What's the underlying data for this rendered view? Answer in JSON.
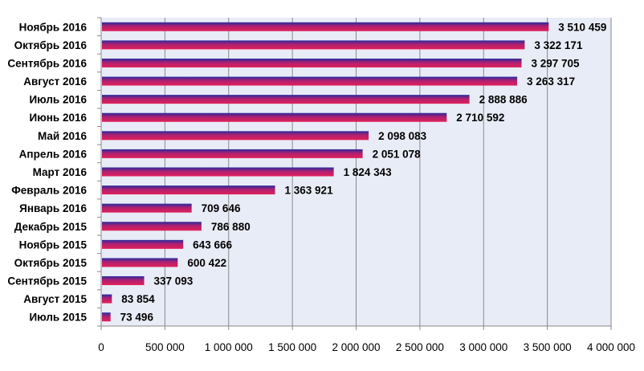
{
  "chart_data": {
    "type": "bar",
    "orientation": "horizontal",
    "title": "",
    "xlabel": "",
    "ylabel": "",
    "categories": [
      "Ноябрь 2016",
      "Октябрь 2016",
      "Сентябрь 2016",
      "Август 2016",
      "Июль 2016",
      "Июнь 2016",
      "Май 2016",
      "Апрель 2016",
      "Март 2016",
      "Февраль 2016",
      "Январь 2016",
      "Декабрь 2015",
      "Ноябрь 2015",
      "Октябрь 2015",
      "Сентябрь 2015",
      "Август 2015",
      "Июль 2015"
    ],
    "values": [
      3510459,
      3322171,
      3297705,
      3263317,
      2888886,
      2710592,
      2098083,
      2051078,
      1824343,
      1363921,
      709646,
      786880,
      643666,
      600422,
      337093,
      83854,
      73496
    ],
    "value_labels": [
      "3 510 459",
      "3 322 171",
      "3 297 705",
      "3 263 317",
      "2 888 886",
      "2 710 592",
      "2 098 083",
      "2 051 078",
      "1 824 343",
      "1 363 921",
      "709 646",
      "786 880",
      "643 666",
      "600 422",
      "337 093",
      "83 854",
      "73 496"
    ],
    "xlim": [
      0,
      4000000
    ],
    "ticks": [
      0,
      500000,
      1000000,
      1500000,
      2000000,
      2500000,
      3000000,
      3500000,
      4000000
    ],
    "tick_labels": [
      "0",
      "500 000",
      "1 000 000",
      "1 500 000",
      "2 000 000",
      "2 500 000",
      "3 000 000",
      "3 500 000",
      "4 000 000"
    ],
    "grid": "vertical",
    "legend": "none",
    "colors": {
      "bar_top": "#2a2a9e",
      "bar_bottom": "#e0205a",
      "plot_bg": "#e8ecf6",
      "grid": "#8a8a8a",
      "axis": "#8a8a8a"
    }
  }
}
